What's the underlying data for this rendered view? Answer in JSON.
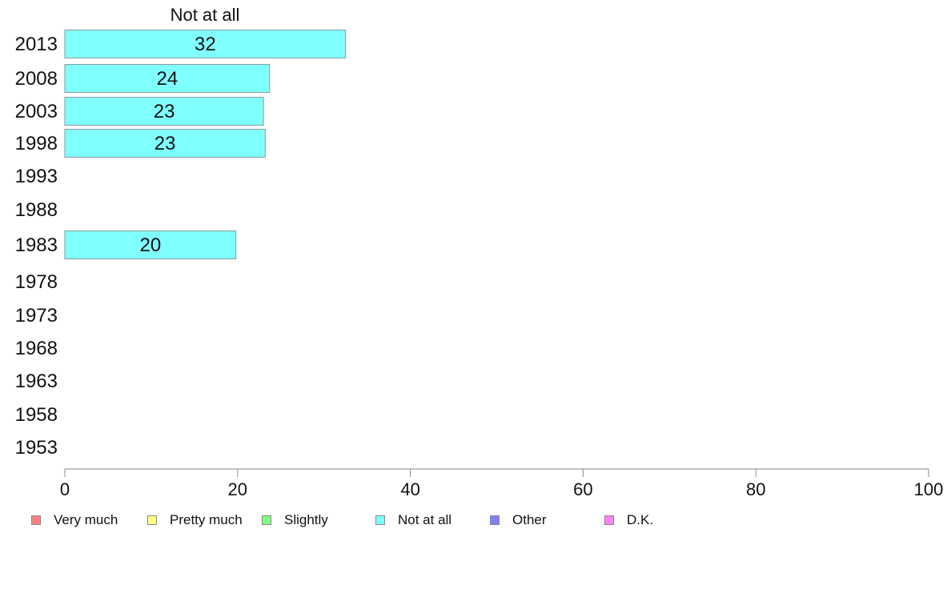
{
  "chart_data": {
    "type": "bar",
    "orientation": "horizontal",
    "title": "Not at all",
    "categories": [
      "2013",
      "2008",
      "2003",
      "1998",
      "1993",
      "1988",
      "1983",
      "1978",
      "1973",
      "1968",
      "1963",
      "1958",
      "1953"
    ],
    "series": [
      {
        "name": "Not at all",
        "color": "#80ffff",
        "values": [
          32.5,
          23.7,
          23.0,
          23.2,
          null,
          null,
          19.8,
          null,
          null,
          null,
          null,
          null,
          null
        ],
        "labels": [
          "32",
          "24",
          "23",
          "23",
          "",
          "",
          "20",
          "",
          "",
          "",
          "",
          "",
          ""
        ]
      }
    ],
    "xlim": [
      0,
      100
    ],
    "xticks": [
      "0",
      "20",
      "40",
      "60",
      "80",
      "100"
    ],
    "grid": false,
    "legend_position": "bottom",
    "legend": [
      {
        "label": "Very much",
        "color": "#ff8080"
      },
      {
        "label": "Pretty much",
        "color": "#ffff80"
      },
      {
        "label": "Slightly",
        "color": "#80ff80"
      },
      {
        "label": "Not at all",
        "color": "#80ffff"
      },
      {
        "label": "Other",
        "color": "#8080ff"
      },
      {
        "label": "D.K.",
        "color": "#ff80ff"
      }
    ]
  }
}
